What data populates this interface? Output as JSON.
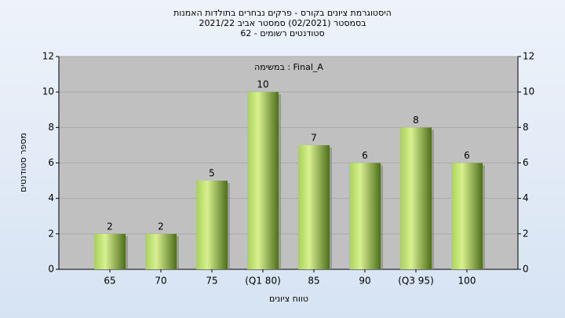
{
  "chart_data": {
    "type": "bar",
    "title": "היסטוגרמת ציונים בקורס - פרקים נבחרים בתולדות האמנות",
    "subtitle": "בסמסטר  (02/2021)  סמסטר אביב 2021/22",
    "subtitle2": "סטודנטים רשומים - 62",
    "annotation": "במשימה : Final_A",
    "x_label": "טווח ציונים",
    "y_label": "מספר סטודנטים",
    "categories": [
      "65",
      "70",
      "75",
      "(Q1 80)",
      "85",
      "90",
      "(Q3 95)",
      "100"
    ],
    "values": [
      2,
      2,
      5,
      10,
      7,
      6,
      8,
      6
    ],
    "color": "#8fc040",
    "ylim": [
      0,
      12
    ],
    "yticks": [
      0,
      2,
      4,
      6,
      8,
      10,
      12
    ],
    "y2lim": [
      0,
      12
    ],
    "y2ticks": [
      0,
      2,
      4,
      6,
      8,
      10,
      12
    ],
    "grid": true
  }
}
